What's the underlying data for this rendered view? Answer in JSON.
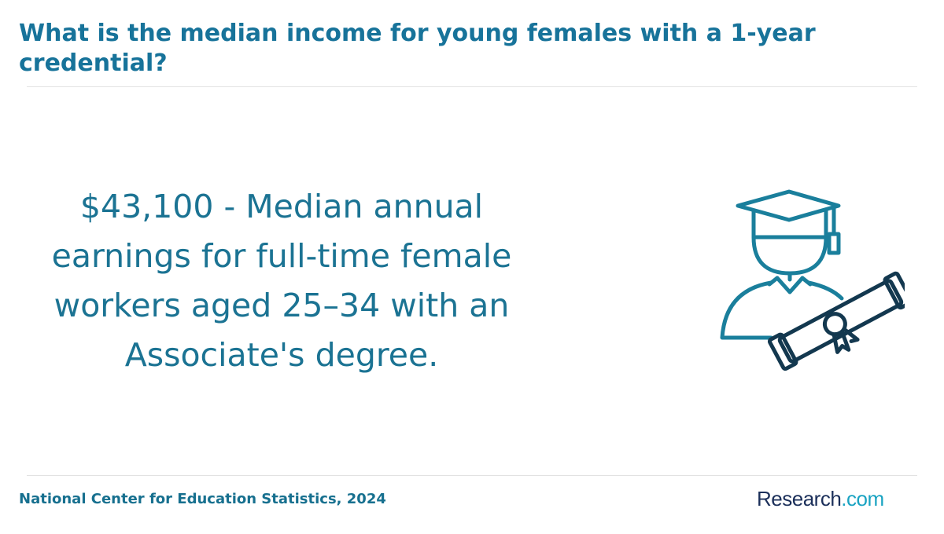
{
  "header": {
    "title": "What is the median income for young females with a 1-year credential?"
  },
  "statement": {
    "text": "$43,100 - Median annual earnings for full-time female workers aged 25–34 with an Associate's degree."
  },
  "footer": {
    "source": "National Center for Education Statistics, 2024",
    "logo": {
      "name": "Research",
      "suffix": ".com"
    }
  }
}
